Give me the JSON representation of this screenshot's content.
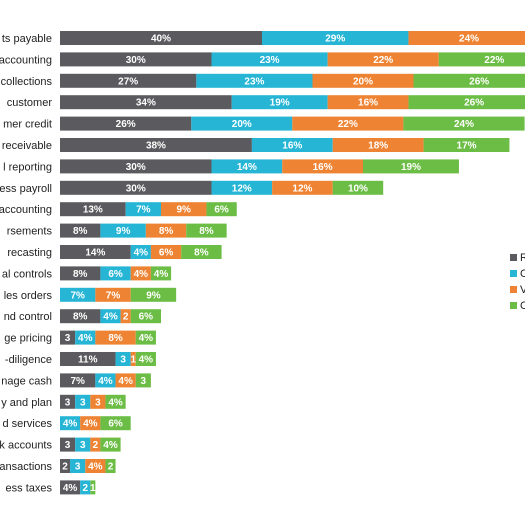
{
  "chart_data": {
    "type": "bar",
    "orientation": "horizontal",
    "stacked": true,
    "grid": false,
    "legend_position": "right",
    "colors": [
      "#5b5b5f",
      "#27b5d6",
      "#ee8433",
      "#6cbd45"
    ],
    "legend": [
      {
        "label": "R"
      },
      {
        "label": "C"
      },
      {
        "label": "V"
      },
      {
        "label": "C"
      }
    ],
    "categories": [
      "ts payable",
      "accounting",
      "collections",
      "customer",
      "mer credit",
      "receivable",
      "l reporting",
      "ess payroll",
      "accounting",
      "rsements",
      "recasting",
      "al controls",
      "les orders",
      "nd control",
      "ge pricing",
      "-diligence",
      "nage cash",
      "y and plan",
      "d services",
      "k accounts",
      "ansactions",
      "ess taxes"
    ],
    "series": [
      {
        "values": [
          40,
          30,
          27,
          34,
          26,
          38,
          30,
          30,
          13,
          8,
          14,
          8,
          0,
          8,
          3,
          11,
          7,
          3,
          0,
          3,
          2,
          4
        ],
        "labels": [
          "40%",
          "30%",
          "27%",
          "34%",
          "26%",
          "38%",
          "30%",
          "30%",
          "13%",
          "8%",
          "14%",
          "8%",
          "",
          "8%",
          "3",
          "11%",
          "7%",
          "3",
          "",
          "3",
          "2",
          "4%"
        ]
      },
      {
        "values": [
          29,
          23,
          23,
          19,
          20,
          16,
          14,
          12,
          7,
          9,
          4,
          6,
          7,
          4,
          4,
          3,
          4,
          3,
          4,
          3,
          3,
          2
        ],
        "labels": [
          "29%",
          "23%",
          "23%",
          "19%",
          "20%",
          "16%",
          "14%",
          "12%",
          "7%",
          "9%",
          "4%",
          "6%",
          "7%",
          "4%",
          "4%",
          "3",
          "4%",
          "3",
          "4%",
          "3",
          "3",
          "2"
        ]
      },
      {
        "values": [
          24,
          22,
          20,
          16,
          22,
          18,
          16,
          12,
          9,
          8,
          6,
          4,
          7,
          2,
          8,
          1,
          4,
          3,
          4,
          2,
          4,
          0
        ],
        "labels": [
          "24%",
          "22%",
          "20%",
          "16%",
          "22%",
          "18%",
          "16%",
          "12%",
          "9%",
          "8%",
          "6%",
          "4%",
          "7%",
          "2",
          "8%",
          "1",
          "4%",
          "3",
          "4%",
          "2",
          "4%",
          ""
        ]
      },
      {
        "values": [
          22,
          22,
          26,
          26,
          24,
          17,
          19,
          10,
          6,
          8,
          8,
          4,
          9,
          6,
          4,
          4,
          3,
          4,
          6,
          4,
          2,
          1
        ],
        "labels": [
          "",
          "22%",
          "26%",
          "26%",
          "24%",
          "17%",
          "19%",
          "10%",
          "6%",
          "8%",
          "8%",
          "4%",
          "9%",
          "6%",
          "4%",
          "4%",
          "3",
          "4%",
          "6%",
          "4%",
          "2",
          "1"
        ]
      }
    ]
  }
}
